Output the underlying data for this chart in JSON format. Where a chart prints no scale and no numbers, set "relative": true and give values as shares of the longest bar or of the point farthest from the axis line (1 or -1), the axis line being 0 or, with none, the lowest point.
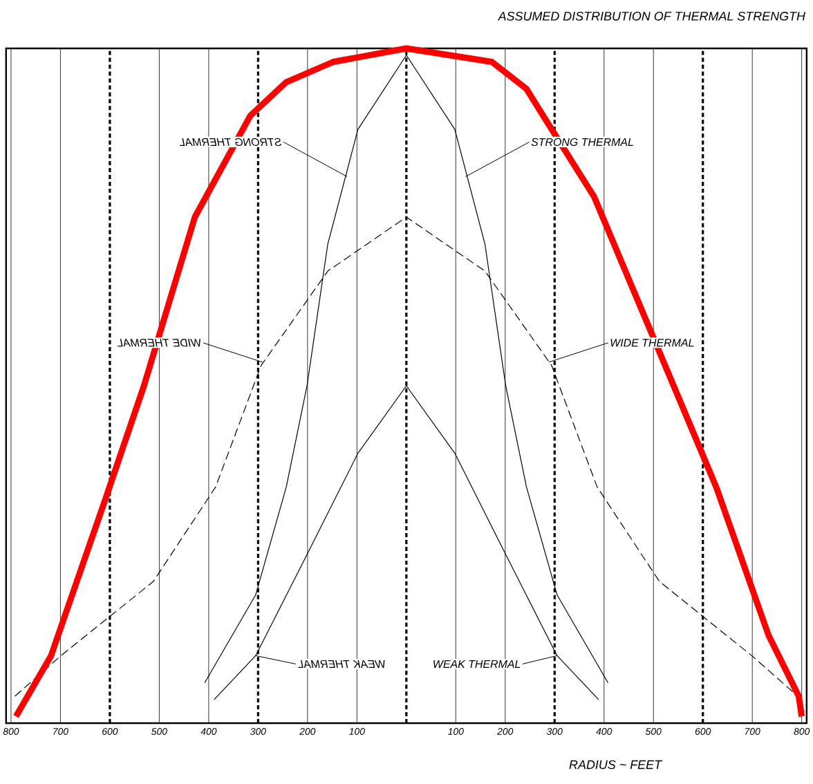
{
  "chart_data": {
    "type": "line",
    "title": "ASSUMED DISTRIBUTION OF THERMAL STRENGTH",
    "xlabel": "RADIUS ~ FEET",
    "relative": true,
    "marker": "none",
    "grid": "x",
    "xlim": [
      -810,
      810
    ],
    "xticks": [
      {
        "value": -800,
        "label": "800"
      },
      {
        "value": -700,
        "label": "700"
      },
      {
        "value": -600,
        "label": "600"
      },
      {
        "value": -500,
        "label": "500"
      },
      {
        "value": -400,
        "label": "400"
      },
      {
        "value": -300,
        "label": "300"
      },
      {
        "value": -200,
        "label": "200"
      },
      {
        "value": -100,
        "label": "100"
      },
      {
        "value": 0,
        "label": null
      },
      100,
      200,
      300,
      400,
      500,
      600,
      700,
      800
    ],
    "series": [
      {
        "color": "#000000",
        "line_style": "solid",
        "x": [
          -408,
          -305,
          -243,
          -201,
          -159,
          -98,
          0,
          98,
          159,
          201,
          243,
          305,
          408
        ],
        "values": [
          0.06,
          0.19,
          0.35,
          0.5,
          0.71,
          0.88,
          0.99,
          0.88,
          0.71,
          0.5,
          0.35,
          0.19,
          0.06
        ]
      },
      {
        "color": "#000000",
        "line_style": "solid",
        "x": [
          -389,
          -305,
          -201,
          -98,
          0,
          98,
          201,
          305,
          389
        ],
        "values": [
          0.035,
          0.1,
          0.25,
          0.4,
          0.5,
          0.4,
          0.25,
          0.1,
          0.035
        ]
      },
      {
        "color": "#000000",
        "line_style": "dashed",
        "x": [
          -792,
          -699,
          -512,
          -386,
          -294,
          -159,
          0,
          159,
          294,
          386,
          512,
          699,
          792
        ],
        "values": [
          0.04,
          0.1,
          0.21,
          0.35,
          0.53,
          0.67,
          0.75,
          0.67,
          0.53,
          0.35,
          0.21,
          0.1,
          0.04
        ]
      },
      {
        "color": "#ff0000",
        "line_style": "solid",
        "x": [
          -790,
          -719,
          -610,
          -531,
          -428,
          -316,
          -243,
          -148,
          0,
          173,
          243,
          277,
          380,
          627,
          733,
          794,
          800
        ],
        "values": [
          0.01,
          0.1,
          0.33,
          0.5,
          0.75,
          0.9,
          0.95,
          0.98,
          1.0,
          0.98,
          0.94,
          0.9,
          0.78,
          0.35,
          0.13,
          0.04,
          0.01
        ]
      }
    ],
    "annotations": [
      {
        "text": "STRONG THERMAL",
        "x": 120,
        "y": 0.81
      },
      {
        "text": "STRONG THERMAL",
        "x": -120,
        "y": 0.81
      },
      {
        "text": "WIDE THERMAL",
        "x": 288,
        "y": 0.535
      },
      {
        "text": "WIDE THERMAL",
        "x": -291,
        "y": 0.535
      },
      {
        "text": "WEAK THERMAL",
        "x": 305,
        "y": 0.1
      },
      {
        "text": "WEAK THERMAL",
        "x": -305,
        "y": 0.1
      }
    ]
  }
}
